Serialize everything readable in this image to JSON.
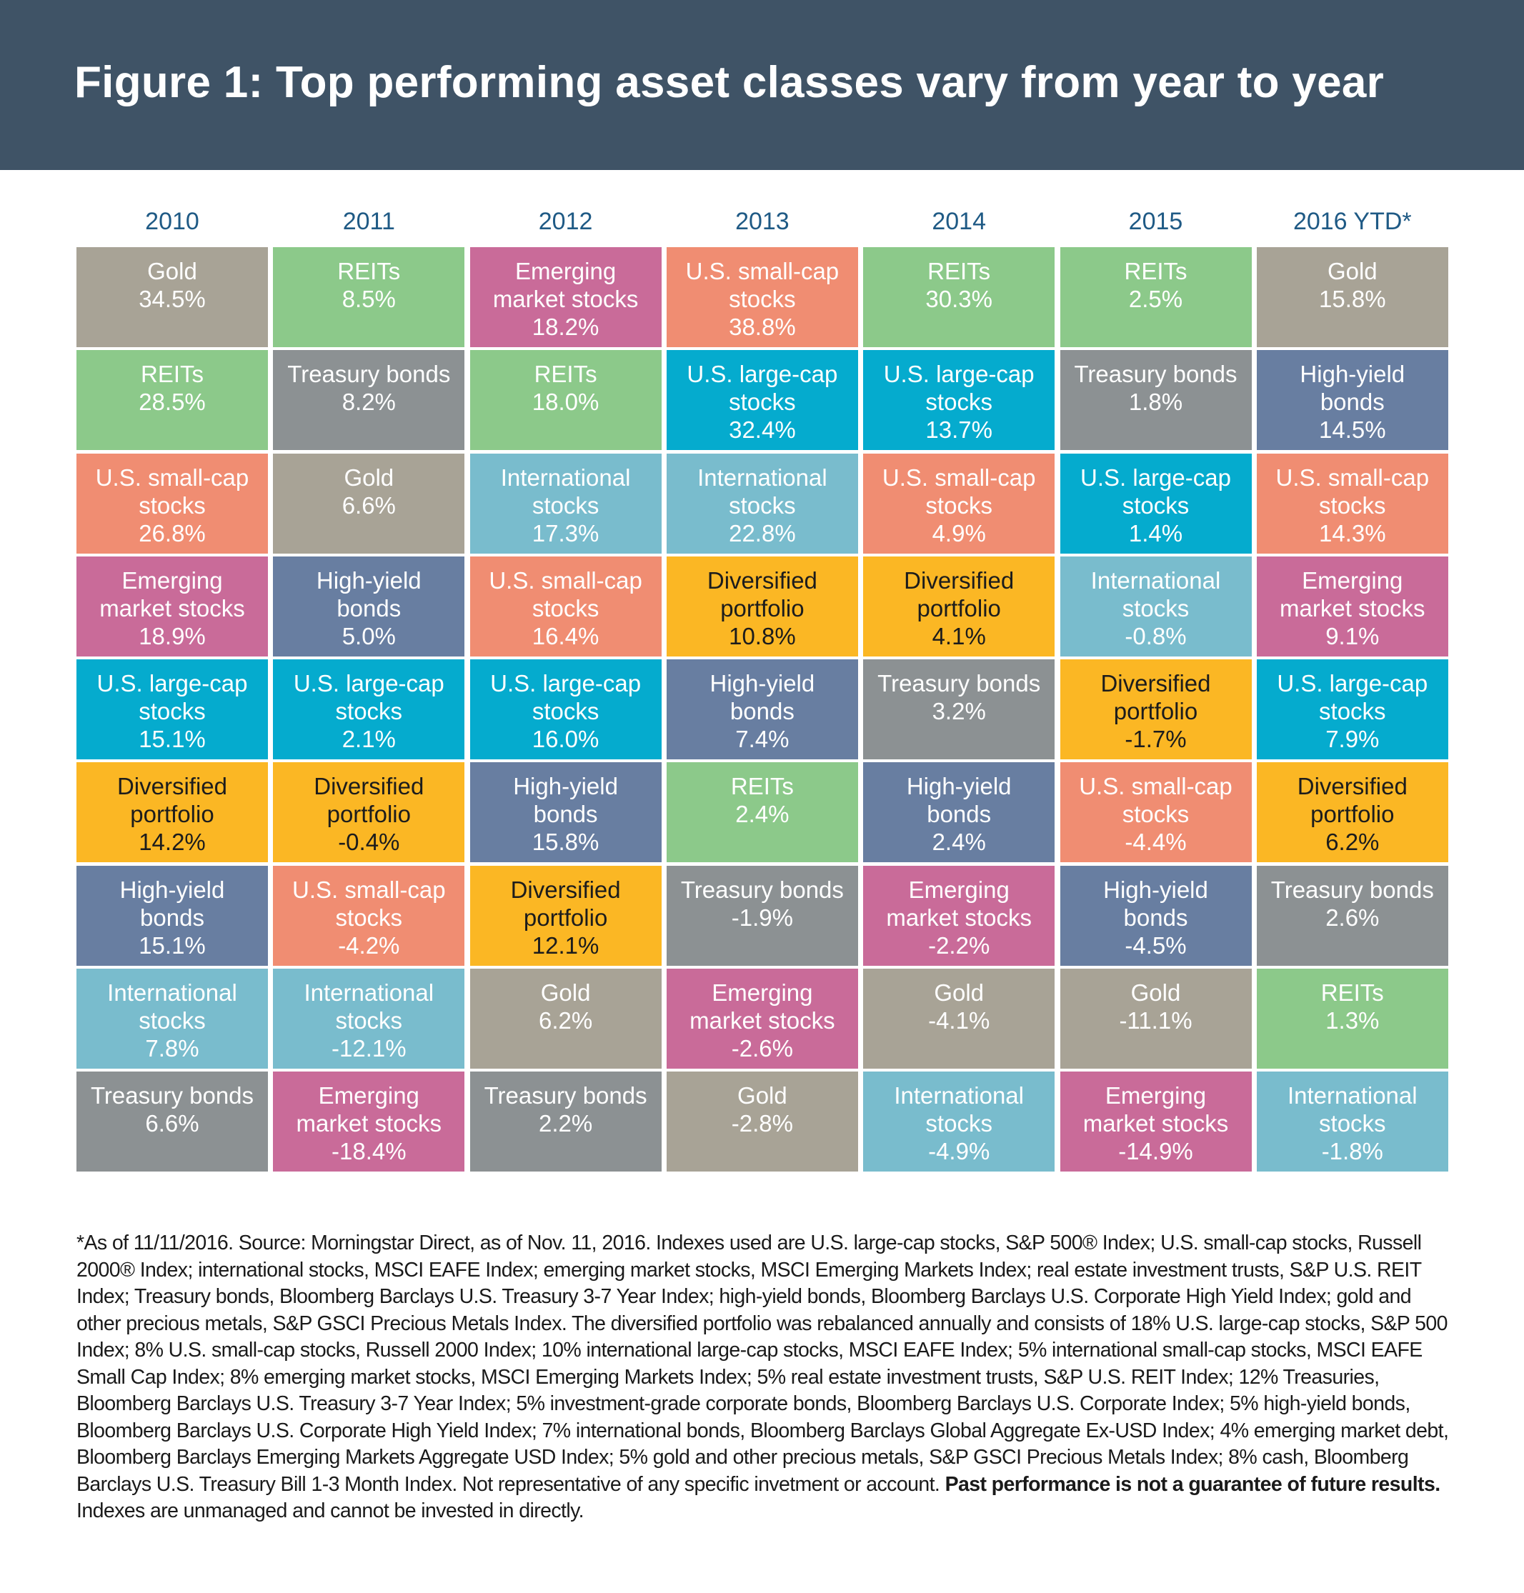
{
  "title": "Figure 1: Top performing asset classes vary from year to year",
  "colors": {
    "header_bg": "#3f5366",
    "year_text": "#1f5a85",
    "Gold": "#a8a396",
    "REITs": "#8cc98a",
    "Emerging market stocks": "#c96b99",
    "U.S. small-cap stocks": "#f08d72",
    "U.S. large-cap stocks": "#05abce",
    "International stocks": "#79bccd",
    "Diversified portfolio": "#fbb724",
    "High-yield bonds": "#687ea1",
    "Treasury bonds": "#8c9193"
  },
  "chart_data": {
    "type": "table",
    "title": "Figure 1: Top performing asset classes vary from year to year",
    "columns": [
      "2010",
      "2011",
      "2012",
      "2013",
      "2014",
      "2015",
      "2016 YTD*"
    ],
    "rows": [
      [
        {
          "asset": "Gold",
          "label": "Gold",
          "value": "34.5%"
        },
        {
          "asset": "REITs",
          "label": "REITs",
          "value": "8.5%"
        },
        {
          "asset": "Emerging market stocks",
          "label": "Emerging\nmarket stocks",
          "value": "18.2%"
        },
        {
          "asset": "U.S. small-cap stocks",
          "label": "U.S. small-cap\nstocks",
          "value": "38.8%"
        },
        {
          "asset": "REITs",
          "label": "REITs",
          "value": "30.3%"
        },
        {
          "asset": "REITs",
          "label": "REITs",
          "value": "2.5%"
        },
        {
          "asset": "Gold",
          "label": "Gold",
          "value": "15.8%"
        }
      ],
      [
        {
          "asset": "REITs",
          "label": "REITs",
          "value": "28.5%"
        },
        {
          "asset": "Treasury bonds",
          "label": "Treasury bonds",
          "value": "8.2%"
        },
        {
          "asset": "REITs",
          "label": "REITs",
          "value": "18.0%"
        },
        {
          "asset": "U.S. large-cap stocks",
          "label": "U.S. large-cap\nstocks",
          "value": "32.4%"
        },
        {
          "asset": "U.S. large-cap stocks",
          "label": "U.S. large-cap\nstocks",
          "value": "13.7%"
        },
        {
          "asset": "Treasury bonds",
          "label": "Treasury bonds",
          "value": "1.8%"
        },
        {
          "asset": "High-yield bonds",
          "label": "High-yield\nbonds",
          "value": "14.5%"
        }
      ],
      [
        {
          "asset": "U.S. small-cap stocks",
          "label": "U.S. small-cap\nstocks",
          "value": "26.8%"
        },
        {
          "asset": "Gold",
          "label": "Gold",
          "value": "6.6%"
        },
        {
          "asset": "International stocks",
          "label": "International\nstocks",
          "value": "17.3%"
        },
        {
          "asset": "International stocks",
          "label": "International\nstocks",
          "value": "22.8%"
        },
        {
          "asset": "U.S. small-cap stocks",
          "label": "U.S. small-cap\nstocks",
          "value": "4.9%"
        },
        {
          "asset": "U.S. large-cap stocks",
          "label": "U.S. large-cap\nstocks",
          "value": "1.4%"
        },
        {
          "asset": "U.S. small-cap stocks",
          "label": "U.S. small-cap\nstocks",
          "value": "14.3%"
        }
      ],
      [
        {
          "asset": "Emerging market stocks",
          "label": "Emerging\nmarket stocks",
          "value": "18.9%"
        },
        {
          "asset": "High-yield bonds",
          "label": "High-yield\nbonds",
          "value": "5.0%"
        },
        {
          "asset": "U.S. small-cap stocks",
          "label": "U.S. small-cap\nstocks",
          "value": "16.4%"
        },
        {
          "asset": "Diversified portfolio",
          "label": "Diversified\nportfolio",
          "value": "10.8%"
        },
        {
          "asset": "Diversified portfolio",
          "label": "Diversified\nportfolio",
          "value": "4.1%"
        },
        {
          "asset": "International stocks",
          "label": "International\nstocks",
          "value": "-0.8%"
        },
        {
          "asset": "Emerging market stocks",
          "label": "Emerging\nmarket stocks",
          "value": "9.1%"
        }
      ],
      [
        {
          "asset": "U.S. large-cap stocks",
          "label": "U.S. large-cap\nstocks",
          "value": "15.1%"
        },
        {
          "asset": "U.S. large-cap stocks",
          "label": "U.S. large-cap\nstocks",
          "value": "2.1%"
        },
        {
          "asset": "U.S. large-cap stocks",
          "label": "U.S. large-cap\nstocks",
          "value": "16.0%"
        },
        {
          "asset": "High-yield bonds",
          "label": "High-yield\nbonds",
          "value": "7.4%"
        },
        {
          "asset": "Treasury bonds",
          "label": "Treasury bonds",
          "value": "3.2%"
        },
        {
          "asset": "Diversified portfolio",
          "label": "Diversified\nportfolio",
          "value": "-1.7%"
        },
        {
          "asset": "U.S. large-cap stocks",
          "label": "U.S. large-cap\nstocks",
          "value": "7.9%"
        }
      ],
      [
        {
          "asset": "Diversified portfolio",
          "label": "Diversified\nportfolio",
          "value": "14.2%"
        },
        {
          "asset": "Diversified portfolio",
          "label": "Diversified\nportfolio",
          "value": "-0.4%"
        },
        {
          "asset": "High-yield bonds",
          "label": "High-yield\nbonds",
          "value": "15.8%"
        },
        {
          "asset": "REITs",
          "label": "REITs",
          "value": "2.4%"
        },
        {
          "asset": "High-yield bonds",
          "label": "High-yield\nbonds",
          "value": "2.4%"
        },
        {
          "asset": "U.S. small-cap stocks",
          "label": "U.S. small-cap\nstocks",
          "value": "-4.4%"
        },
        {
          "asset": "Diversified portfolio",
          "label": "Diversified\nportfolio",
          "value": "6.2%"
        }
      ],
      [
        {
          "asset": "High-yield bonds",
          "label": "High-yield\nbonds",
          "value": "15.1%"
        },
        {
          "asset": "U.S. small-cap stocks",
          "label": "U.S. small-cap\nstocks",
          "value": "-4.2%"
        },
        {
          "asset": "Diversified portfolio",
          "label": "Diversified\nportfolio",
          "value": "12.1%"
        },
        {
          "asset": "Treasury bonds",
          "label": "Treasury bonds",
          "value": "-1.9%"
        },
        {
          "asset": "Emerging market stocks",
          "label": "Emerging\nmarket stocks",
          "value": "-2.2%"
        },
        {
          "asset": "High-yield bonds",
          "label": "High-yield\nbonds",
          "value": "-4.5%"
        },
        {
          "asset": "Treasury bonds",
          "label": "Treasury bonds",
          "value": "2.6%"
        }
      ],
      [
        {
          "asset": "International stocks",
          "label": "International\nstocks",
          "value": "7.8%"
        },
        {
          "asset": "International stocks",
          "label": "International\nstocks",
          "value": "-12.1%"
        },
        {
          "asset": "Gold",
          "label": "Gold",
          "value": "6.2%"
        },
        {
          "asset": "Emerging market stocks",
          "label": "Emerging\nmarket stocks",
          "value": "-2.6%"
        },
        {
          "asset": "Gold",
          "label": "Gold",
          "value": "-4.1%"
        },
        {
          "asset": "Gold",
          "label": "Gold",
          "value": "-11.1%"
        },
        {
          "asset": "REITs",
          "label": "REITs",
          "value": "1.3%"
        }
      ],
      [
        {
          "asset": "Treasury bonds",
          "label": "Treasury bonds",
          "value": "6.6%"
        },
        {
          "asset": "Emerging market stocks",
          "label": "Emerging\nmarket stocks",
          "value": "-18.4%"
        },
        {
          "asset": "Treasury bonds",
          "label": "Treasury bonds",
          "value": "2.2%"
        },
        {
          "asset": "Gold",
          "label": "Gold",
          "value": "-2.8%"
        },
        {
          "asset": "International stocks",
          "label": "International\nstocks",
          "value": "-4.9%"
        },
        {
          "asset": "Emerging market stocks",
          "label": "Emerging\nmarket stocks",
          "value": "-14.9%"
        },
        {
          "asset": "International stocks",
          "label": "International\nstocks",
          "value": "-1.8%"
        }
      ]
    ]
  },
  "footnote": {
    "text": "*As of 11/11/2016. Source: Morningstar Direct, as of Nov. 11, 2016. Indexes used are U.S. large-cap stocks, S&P 500® Index; U.S. small-cap stocks, Russell 2000® Index; international stocks, MSCI EAFE Index; emerging market stocks, MSCI Emerging Markets Index; real estate investment trusts, S&P U.S. REIT Index; Treasury bonds, Bloomberg Barclays U.S. Treasury 3-7 Year Index; high-yield bonds, Bloomberg Barclays U.S. Corporate High Yield Index; gold and other precious metals, S&P GSCI Precious Metals Index. The diversified portfolio was rebalanced annually and consists of 18% U.S. large-cap stocks, S&P 500 Index; 8% U.S. small-cap stocks, Russell 2000 Index; 10% international large-cap stocks, MSCI EAFE Index; 5% international small-cap stocks, MSCI EAFE Small Cap Index; 8% emerging market stocks, MSCI Emerging Markets Index; 5% real estate investment trusts, S&P U.S. REIT Index; 12% Treasuries, Bloomberg Barclays U.S. Treasury 3-7 Year Index; 5% investment-grade corporate bonds, Bloomberg Barclays U.S. Corporate Index; 5% high-yield bonds, Bloomberg Barclays U.S. Corporate High Yield Index; 7% international bonds, Bloomberg Barclays Global Aggregate Ex-USD Index; 4% emerging market debt, Bloomberg Barclays Emerging Markets Aggregate USD Index; 5% gold and other precious metals, S&P GSCI Precious Metals Index; 8% cash, Bloomberg Barclays U.S. Treasury Bill 1-3 Month Index. Not representative of any specific invetment or account.",
    "bold": "Past performance is not a guarantee of future results.",
    "tail": "Indexes are unmanaged and cannot be invested in directly."
  }
}
